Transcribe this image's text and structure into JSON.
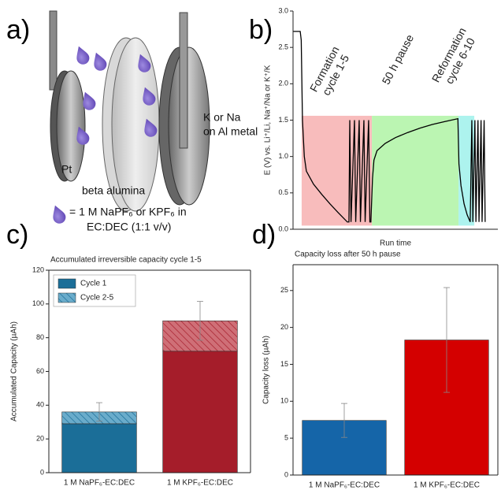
{
  "diagram": {
    "label": "a)",
    "electrode_left": "Pt",
    "separator": "beta alumina",
    "electrode_right": [
      "K or Na",
      "on Al metal"
    ],
    "electrolyte": [
      "= 1 M NaPF₆ or KPF₆ in",
      "EC:DEC (1:1 v/v)"
    ]
  },
  "chart_data": [
    {
      "type": "line",
      "label": "b)",
      "ylabel": "E (V) vs. Li⁺/Li, Na⁺/Na or K⁺/K",
      "xlabel": "Run time",
      "xlim": [
        0,
        100
      ],
      "ylim": [
        0,
        3.0
      ],
      "yticks": [
        {
          "value": 0,
          "label": "0.0"
        },
        0.5,
        {
          "value": 1,
          "label": "1.0"
        },
        1.5,
        {
          "value": 2,
          "label": "2.0"
        },
        2.5,
        {
          "value": 3,
          "label": "3.0"
        }
      ],
      "x": [
        0,
        3.5,
        4.0,
        4.6,
        5.5,
        6.5,
        10,
        14,
        18,
        22,
        26.5,
        27.3,
        27.7,
        28.3,
        30.0,
        30.6,
        32.3,
        32.9,
        34.6,
        35.2,
        36.9,
        37.5,
        38.0,
        38.8,
        39.5,
        41,
        45,
        50,
        56,
        62,
        68,
        74,
        80.5,
        81,
        82,
        83.5,
        85,
        86.5,
        87.3,
        87.8,
        88.8,
        89.3,
        90.3,
        90.8,
        91.8,
        92.3,
        93.3,
        93.8
      ],
      "series": [
        {
          "color": "#000000",
          "values": [
            2.72,
            2.72,
            2.6,
            1.5,
            1.0,
            0.8,
            0.62,
            0.48,
            0.35,
            0.23,
            0.1,
            0.1,
            1.5,
            0.1,
            1.5,
            0.1,
            1.5,
            0.1,
            1.5,
            0.1,
            1.5,
            0.1,
            0.1,
            0.7,
            0.95,
            1.08,
            1.18,
            1.26,
            1.33,
            1.39,
            1.44,
            1.48,
            1.52,
            0.9,
            0.6,
            0.35,
            0.2,
            0.1,
            1.5,
            0.1,
            1.5,
            0.1,
            1.5,
            0.1,
            1.5,
            0.1,
            1.5,
            0.1
          ]
        }
      ],
      "regions": [
        {
          "xlim": [
            4.2,
            38.5
          ],
          "ylim": [
            0.05,
            1.56
          ],
          "color": "#f8bcbc"
        },
        {
          "xlim": [
            38.5,
            80.8
          ],
          "ylim": [
            0.05,
            1.56
          ],
          "color": "#bbf5b2"
        },
        {
          "xlim": [
            80.8,
            88.5
          ],
          "ylim": [
            0.05,
            1.56
          ],
          "color": "#adf3ee"
        }
      ],
      "annotations": [
        {
          "text": [
            "Formation",
            "cycle 1-5"
          ],
          "color": "#c8292f"
        },
        {
          "text": [
            "50 h pause"
          ],
          "color": "#3c8c1e"
        },
        {
          "text": [
            "Reformation",
            "cycle 6-10"
          ],
          "color": "#4a90d9"
        }
      ]
    },
    {
      "type": "stacked_bar",
      "label": "c)",
      "title": "Accumulated irreversible capacity cycle 1-5",
      "ylabel": "Accumulated Capacity (µAh)",
      "categories": [
        "1 M NaPF₆-EC:DEC",
        "1 M KPF₆-EC:DEC"
      ],
      "ylim": [
        0,
        120
      ],
      "yticks": [
        0,
        20,
        40,
        60,
        80,
        100,
        120
      ],
      "legend": "upper left",
      "series": [
        {
          "name": "Cycle 1",
          "color": "#1b6e98",
          "colors": [
            "#1b6e98",
            "#a51d2a"
          ],
          "values": [
            29,
            72
          ]
        },
        {
          "name": "Cycle 2-5",
          "color": "#6aaccb",
          "colors": [
            "#6aaccb",
            "#cf6f77"
          ],
          "hatch": true,
          "values": [
            7,
            18
          ],
          "errors": [
            5.5,
            11.5
          ]
        }
      ]
    },
    {
      "type": "bar",
      "label": "d)",
      "title": "Capacity loss after 50 h pause",
      "ylabel": "Capacity loss (µAh)",
      "categories": [
        "1 M NaPF₆-EC:DEC",
        "1 M KPF₆-EC:DEC"
      ],
      "ylim": [
        0,
        28.5
      ],
      "yticks": [
        0,
        5,
        10,
        15,
        20,
        25
      ],
      "colors": [
        "#1565a8",
        "#d40000"
      ],
      "values": [
        7.4,
        18.3
      ],
      "errors": [
        2.3,
        7.1
      ]
    }
  ]
}
